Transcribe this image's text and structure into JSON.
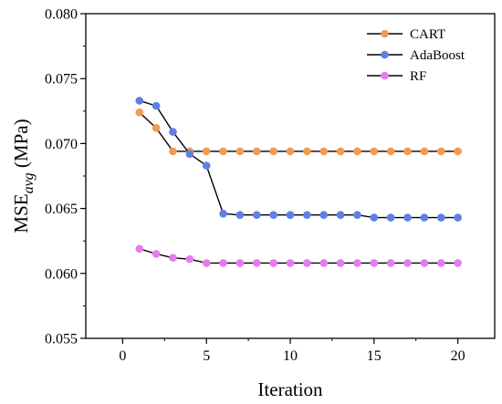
{
  "chart_data": {
    "type": "line",
    "xlabel": "Iteration",
    "ylabel_main": "MSE",
    "ylabel_sub": "avg",
    "ylabel_unit": " (MPa)",
    "xlim": [
      -2.2,
      22.2
    ],
    "ylim": [
      0.055,
      0.08
    ],
    "xticks": [
      0,
      5,
      10,
      15,
      20
    ],
    "yticks": [
      0.055,
      0.06,
      0.065,
      0.07,
      0.075,
      0.08
    ],
    "ytick_labels": [
      "0.055",
      "0.060",
      "0.065",
      "0.070",
      "0.075",
      "0.080"
    ],
    "grid": false,
    "legend_position": "top-right",
    "x": [
      1,
      2,
      3,
      4,
      5,
      6,
      7,
      8,
      9,
      10,
      11,
      12,
      13,
      14,
      15,
      16,
      17,
      18,
      19,
      20
    ],
    "series": [
      {
        "name": "CART",
        "color": "#F39A52",
        "values": [
          0.0724,
          0.0712,
          0.0694,
          0.0694,
          0.0694,
          0.0694,
          0.0694,
          0.0694,
          0.0694,
          0.0694,
          0.0694,
          0.0694,
          0.0694,
          0.0694,
          0.0694,
          0.0694,
          0.0694,
          0.0694,
          0.0694,
          0.0694
        ]
      },
      {
        "name": "AdaBoost",
        "color": "#5F7FE6",
        "values": [
          0.0733,
          0.0729,
          0.0709,
          0.0692,
          0.0683,
          0.0646,
          0.0645,
          0.0645,
          0.0645,
          0.0645,
          0.0645,
          0.0645,
          0.0645,
          0.0645,
          0.0643,
          0.0643,
          0.0643,
          0.0643,
          0.0643,
          0.0643
        ]
      },
      {
        "name": "RF",
        "color": "#E57BEE",
        "values": [
          0.0619,
          0.0615,
          0.0612,
          0.0611,
          0.0608,
          0.0608,
          0.0608,
          0.0608,
          0.0608,
          0.0608,
          0.0608,
          0.0608,
          0.0608,
          0.0608,
          0.0608,
          0.0608,
          0.0608,
          0.0608,
          0.0608,
          0.0608
        ]
      }
    ]
  }
}
